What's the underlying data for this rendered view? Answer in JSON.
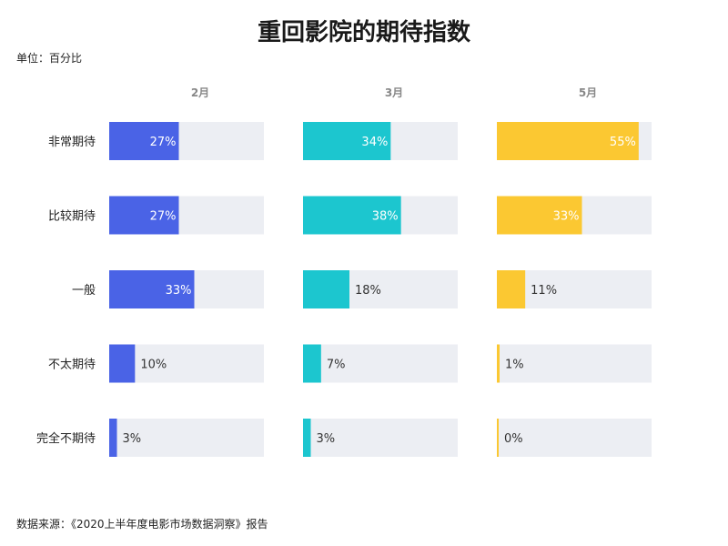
{
  "chart_data": {
    "type": "bar",
    "title": "重回影院的期待指数",
    "unit_label": "单位：百分比",
    "source_label": "数据来源：《2020上半年度电影市场数据洞察》报告",
    "categories": [
      "非常期待",
      "比较期待",
      "一般",
      "不太期待",
      "完全不期待"
    ],
    "xlim": [
      0,
      60
    ],
    "series": [
      {
        "name": "2月",
        "color": "#4a63e6",
        "values": [
          27,
          27,
          33,
          10,
          3
        ]
      },
      {
        "name": "3月",
        "color": "#1cc6cf",
        "values": [
          34,
          38,
          18,
          7,
          3
        ]
      },
      {
        "name": "5月",
        "color": "#fbc832",
        "values": [
          55,
          33,
          11,
          1,
          0
        ]
      }
    ],
    "track_color": "#eceef3",
    "value_suffix": "%"
  }
}
